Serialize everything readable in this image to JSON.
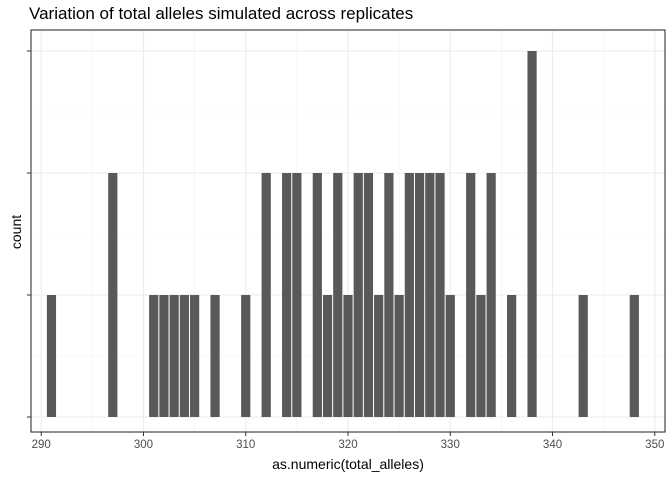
{
  "chart_data": {
    "type": "bar",
    "title": "Variation of total alleles simulated across replicates",
    "xlabel": "as.numeric(total_alleles)",
    "ylabel": "count",
    "xlim": [
      289,
      351
    ],
    "ylim": [
      0,
      3.1
    ],
    "xticks": [
      290,
      300,
      310,
      320,
      330,
      340,
      350
    ],
    "y_tick_labels_shown": false,
    "grid": true,
    "theme": "bw",
    "bar_color": "#595959",
    "x": [
      291,
      297,
      301,
      302,
      303,
      304,
      305,
      307,
      310,
      312,
      314,
      315,
      317,
      318,
      319,
      320,
      321,
      322,
      323,
      324,
      325,
      326,
      327,
      328,
      329,
      330,
      332,
      333,
      334,
      336,
      338,
      343,
      348
    ],
    "values": [
      1,
      2,
      1,
      1,
      1,
      1,
      1,
      1,
      1,
      2,
      2,
      2,
      2,
      1,
      2,
      1,
      2,
      2,
      1,
      2,
      1,
      2,
      2,
      2,
      2,
      1,
      2,
      1,
      2,
      1,
      3,
      1,
      1
    ]
  }
}
